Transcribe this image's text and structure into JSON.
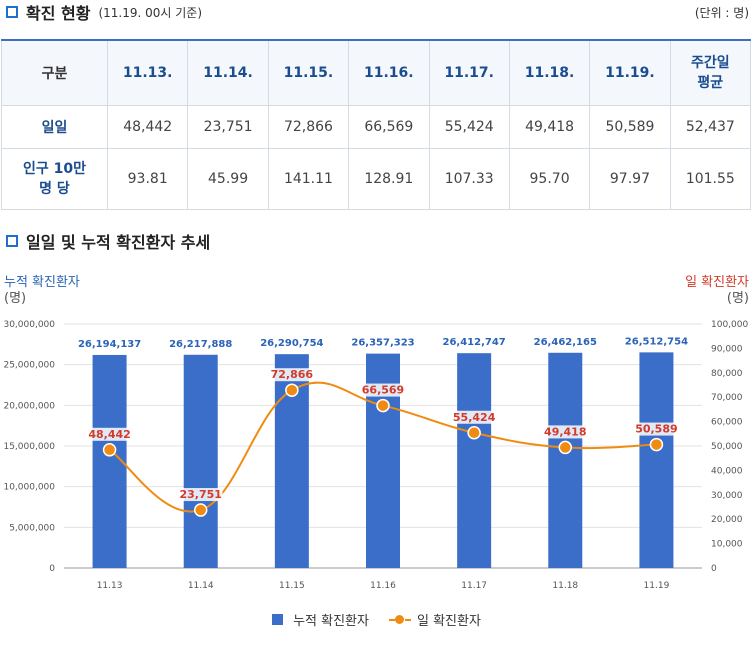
{
  "section1": {
    "title": "확진 현황",
    "subtitle": "(11.19. 00시 기준)",
    "unit": "(단위 : 명)"
  },
  "table": {
    "headers": [
      "구분",
      "11.13.",
      "11.14.",
      "11.15.",
      "11.16.",
      "11.17.",
      "11.18.",
      "11.19.",
      "주간일\n평균"
    ],
    "rows": [
      {
        "label": "일일",
        "values": [
          "48,442",
          "23,751",
          "72,866",
          "66,569",
          "55,424",
          "49,418",
          "50,589",
          "52,437"
        ]
      },
      {
        "label": "인구 10만\n명 당",
        "values": [
          "93.81",
          "45.99",
          "141.11",
          "128.91",
          "107.33",
          "95.70",
          "97.97",
          "101.55"
        ]
      }
    ]
  },
  "section2": {
    "title": "일일 및 누적 확진환자 추세"
  },
  "chart_data": {
    "type": "bar",
    "title": "",
    "categories": [
      "11.13",
      "11.14",
      "11.15",
      "11.16",
      "11.17",
      "11.18",
      "11.19"
    ],
    "left_axis": {
      "label": "누적 확진환자",
      "unit": "(명)",
      "range": [
        0,
        30000000
      ],
      "ticks": [
        "0",
        "5,000,000",
        "10,000,000",
        "15,000,000",
        "20,000,000",
        "25,000,000",
        "30,000,000"
      ]
    },
    "right_axis": {
      "label": "일 확진환자",
      "unit": "(명)",
      "range": [
        0,
        100000
      ],
      "ticks": [
        "0",
        "10,000",
        "20,000",
        "30,000",
        "40,000",
        "50,000",
        "60,000",
        "70,000",
        "80,000",
        "90,000",
        "100,000"
      ]
    },
    "series": [
      {
        "name": "누적 확진환자",
        "type": "bar",
        "axis": "left",
        "color": "#3a6ec9",
        "values": [
          26194137,
          26217888,
          26290754,
          26357323,
          26412747,
          26462165,
          26512754
        ],
        "labels": [
          "26,194,137",
          "26,217,888",
          "26,290,754",
          "26,357,323",
          "26,412,747",
          "26,462,165",
          "26,512,754"
        ]
      },
      {
        "name": "일 확진환자",
        "type": "line",
        "axis": "right",
        "color": "#f08b12",
        "values": [
          48442,
          23751,
          72866,
          66569,
          55424,
          49418,
          50589
        ],
        "labels": [
          "48,442",
          "23,751",
          "72,866",
          "66,569",
          "55,424",
          "49,418",
          "50,589"
        ]
      }
    ],
    "legend": "bottom-center",
    "grid": true
  }
}
